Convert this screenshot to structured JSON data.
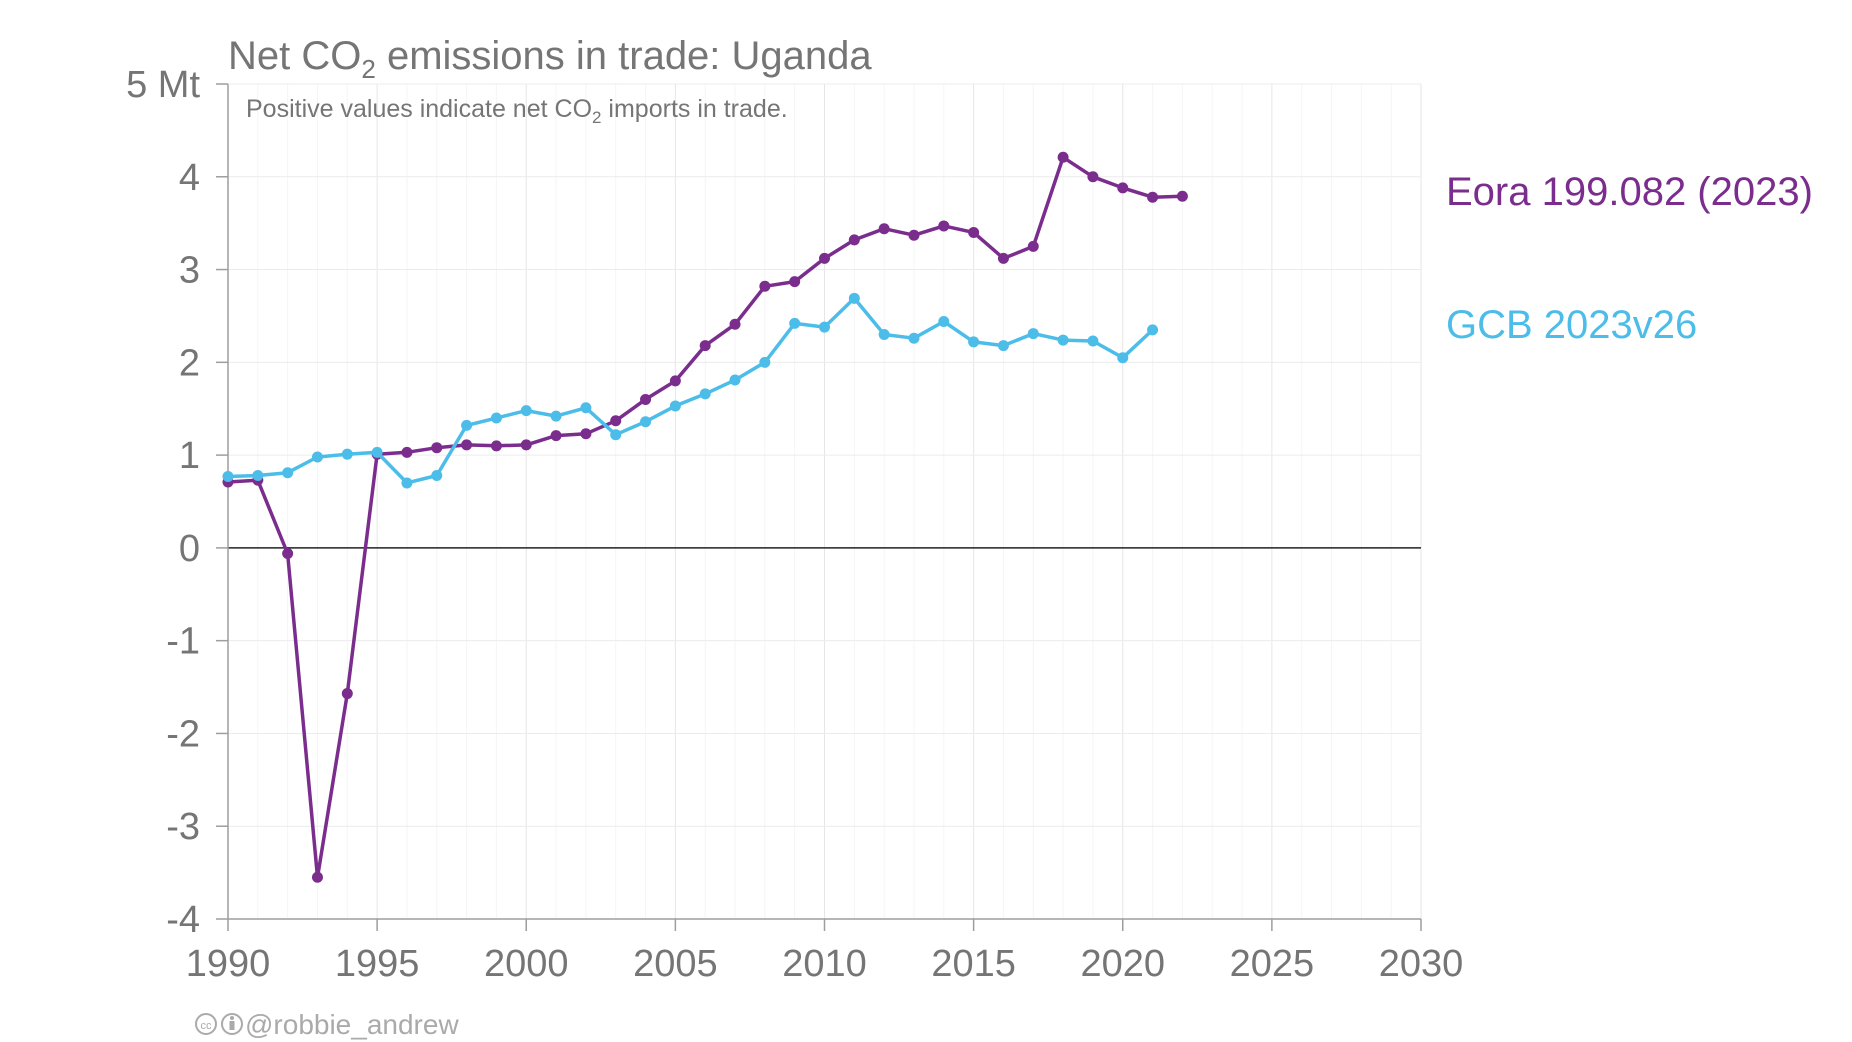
{
  "chart_data": {
    "type": "line",
    "title_parts": [
      "Net CO",
      "2",
      " emissions in trade: Uganda"
    ],
    "subtitle_parts": [
      "Positive values indicate net CO",
      "2",
      " imports in trade."
    ],
    "y_unit_label": "5 Mt",
    "xlim": [
      1990,
      2030
    ],
    "ylim": [
      -4,
      5
    ],
    "x_ticks": [
      1990,
      1995,
      2000,
      2005,
      2010,
      2015,
      2020,
      2025,
      2030
    ],
    "x_tick_labels": [
      "1990",
      "1995",
      "2000",
      "2005",
      "2010",
      "2015",
      "2020",
      "2025",
      "2030"
    ],
    "y_ticks": [
      -4,
      -3,
      -2,
      -1,
      0,
      1,
      2,
      3,
      4,
      5
    ],
    "y_tick_labels": [
      "-4",
      "-3",
      "-2",
      "-1",
      "0",
      "1",
      "2",
      "3",
      "4",
      "5 Mt"
    ],
    "grid": true,
    "legend": "direct-labels-right",
    "series": [
      {
        "name": "Eora 199.082 (2023)",
        "color": "#7b2d8e",
        "x": [
          1990,
          1991,
          1992,
          1993,
          1994,
          1995,
          1996,
          1997,
          1998,
          1999,
          2000,
          2001,
          2002,
          2003,
          2004,
          2005,
          2006,
          2007,
          2008,
          2009,
          2010,
          2011,
          2012,
          2013,
          2014,
          2015,
          2016,
          2017,
          2018,
          2019,
          2020,
          2021,
          2022
        ],
        "y": [
          0.71,
          0.73,
          -0.06,
          -3.55,
          -1.57,
          1.01,
          1.03,
          1.08,
          1.11,
          1.1,
          1.11,
          1.21,
          1.23,
          1.37,
          1.6,
          1.8,
          2.18,
          2.41,
          2.82,
          2.87,
          3.12,
          3.32,
          3.44,
          3.37,
          3.47,
          3.4,
          3.12,
          3.25,
          4.21,
          4.0,
          3.88,
          3.78,
          3.79
        ]
      },
      {
        "name": "GCB 2023v26",
        "color": "#4cbde9",
        "x": [
          1990,
          1991,
          1992,
          1993,
          1994,
          1995,
          1996,
          1997,
          1998,
          1999,
          2000,
          2001,
          2002,
          2003,
          2004,
          2005,
          2006,
          2007,
          2008,
          2009,
          2010,
          2011,
          2012,
          2013,
          2014,
          2015,
          2016,
          2017,
          2018,
          2019,
          2020,
          2021
        ],
        "y": [
          0.77,
          0.78,
          0.81,
          0.98,
          1.01,
          1.03,
          0.7,
          0.78,
          1.32,
          1.4,
          1.48,
          1.42,
          1.51,
          1.22,
          1.36,
          1.53,
          1.66,
          1.81,
          2.0,
          2.42,
          2.38,
          2.69,
          2.3,
          2.26,
          2.44,
          2.22,
          2.18,
          2.31,
          2.24,
          2.23,
          2.05,
          2.35
        ]
      }
    ]
  },
  "credit": {
    "icons": [
      "cc-icon",
      "by-icon"
    ],
    "handle": "@robbie_andrew"
  }
}
